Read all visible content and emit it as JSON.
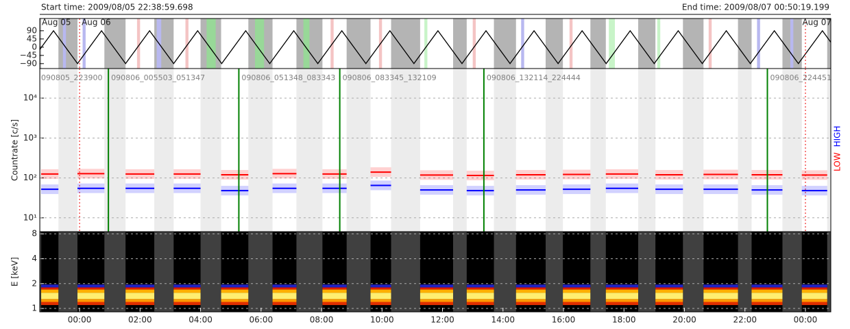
{
  "header": {
    "start": "Start time: 2009/08/05 22:38:59.698",
    "end": "End time: 2009/08/07 00:50:19.199"
  },
  "chart_data": [
    {
      "type": "line",
      "xlim": [
        -1.3167,
        24.839
      ],
      "ylim": [
        -117,
        157
      ],
      "yticks": [
        90,
        45,
        0,
        {
          "value": -45,
          "label": "−45"
        },
        {
          "value": -90,
          "label": "−90"
        }
      ],
      "start_label": "Aug 05",
      "day_markers": [
        {
          "x": 0,
          "label": "Aug 06"
        },
        {
          "x": 24,
          "label": "Aug 07"
        }
      ],
      "stripes": [
        {
          "x0": -0.55,
          "x1": -0.45,
          "color": "#b8b8f0"
        },
        {
          "x0": 0.1,
          "x1": 0.2,
          "color": "#b8b8f0"
        },
        {
          "x0": 1.9,
          "x1": 2.0,
          "color": "#f4c4c4"
        },
        {
          "x0": 2.55,
          "x1": 2.7,
          "color": "#b8b8f0"
        },
        {
          "x0": 3.5,
          "x1": 3.6,
          "color": "#f4c4c4"
        },
        {
          "x0": 4.2,
          "x1": 4.5,
          "color": "#98d898"
        },
        {
          "x0": 5.8,
          "x1": 6.1,
          "color": "#98d898"
        },
        {
          "x0": 7.4,
          "x1": 7.6,
          "color": "#98d898"
        },
        {
          "x0": 8.3,
          "x1": 8.4,
          "color": "#f4c4c4"
        },
        {
          "x0": 9.9,
          "x1": 10.0,
          "color": "#f4c4c4"
        },
        {
          "x0": 11.4,
          "x1": 11.5,
          "color": "#c8f4c8"
        },
        {
          "x0": 13.0,
          "x1": 13.1,
          "color": "#f4c4c4"
        },
        {
          "x0": 14.6,
          "x1": 14.7,
          "color": "#b8b8f0"
        },
        {
          "x0": 16.2,
          "x1": 16.3,
          "color": "#f4c4c4"
        },
        {
          "x0": 17.5,
          "x1": 17.7,
          "color": "#c8f4c8"
        },
        {
          "x0": 19.1,
          "x1": 19.2,
          "color": "#c8f4c8"
        },
        {
          "x0": 20.8,
          "x1": 20.9,
          "color": "#f4c4c4"
        },
        {
          "x0": 22.4,
          "x1": 22.5,
          "color": "#b8b8f0"
        },
        {
          "x0": 23.5,
          "x1": 23.6,
          "color": "#b8b8f0"
        }
      ],
      "x": [
        -1.3167,
        -0.862,
        -0.068,
        0.726,
        1.521,
        2.315,
        3.11,
        3.904,
        4.699,
        5.493,
        6.288,
        7.082,
        7.877,
        8.671,
        9.466,
        10.26,
        11.055,
        11.849,
        12.644,
        13.438,
        14.233,
        15.027,
        15.822,
        16.616,
        17.411,
        18.205,
        19.0,
        19.794,
        20.589,
        21.383,
        22.178,
        22.972,
        23.767,
        24.561,
        24.839
      ],
      "series": [
        {
          "color": "#000000",
          "values": [
            -13,
            90,
            -90,
            90,
            -90,
            90,
            -90,
            90,
            -90,
            90,
            -90,
            90,
            -90,
            90,
            -90,
            90,
            -90,
            90,
            -90,
            90,
            -90,
            90,
            -90,
            90,
            -90,
            90,
            -90,
            90,
            -90,
            90,
            -90,
            90,
            -90,
            90,
            27
          ]
        }
      ]
    },
    {
      "type": "segments",
      "ylabel": "Countrate [c/s]",
      "log": true,
      "xlim": [
        -1.3167,
        24.839
      ],
      "ylim": [
        4.5,
        55000
      ],
      "yticks": [
        {
          "value": 10,
          "label": "10¹"
        },
        {
          "value": 100,
          "label": "10²"
        },
        {
          "value": 1000,
          "label": "10³"
        },
        {
          "value": 10000,
          "label": "10⁴"
        }
      ],
      "grid": true,
      "x_start": [
        -1.27,
        -0.07,
        1.52,
        3.11,
        4.68,
        6.38,
        8.03,
        9.62,
        11.26,
        12.8,
        14.43,
        15.98,
        17.4,
        19.04,
        20.63,
        22.22,
        23.88
      ],
      "x_end": [
        -0.7,
        0.82,
        2.47,
        4.0,
        5.58,
        7.17,
        8.83,
        10.3,
        12.35,
        13.7,
        15.41,
        16.89,
        18.47,
        19.95,
        21.77,
        23.24,
        24.72
      ],
      "series": [
        {
          "name": "LOW",
          "color": "#ff0000",
          "values": [
            125,
            128,
            125,
            125,
            120,
            128,
            125,
            140,
            118,
            115,
            120,
            122,
            125,
            120,
            122,
            120,
            118
          ]
        },
        {
          "name": "HIGH",
          "color": "#0000ff",
          "values": [
            52,
            55,
            55,
            55,
            48,
            55,
            55,
            65,
            50,
            48,
            50,
            52,
            55,
            52,
            52,
            50,
            48
          ]
        }
      ],
      "boundaries": [
        0.953,
        5.266,
        8.603,
        13.368,
        22.742
      ],
      "segment_labels": [
        "090805_223900",
        "090806_005503_051347",
        "090806_051348_083343",
        "090806_083345_132109",
        "090806_132114_224444",
        "090806_224451"
      ]
    },
    {
      "type": "spectrogram",
      "ylabel": "E [keV]",
      "log": true,
      "xlim": [
        -1.3167,
        24.839
      ],
      "ylim": [
        0.91,
        8.5
      ],
      "yticks": [
        1,
        2,
        4,
        8
      ],
      "xticks": [
        {
          "value": 0,
          "label": "00:00"
        },
        {
          "value": 2,
          "label": "02:00"
        },
        {
          "value": 4,
          "label": "04:00"
        },
        {
          "value": 6,
          "label": "06:00"
        },
        {
          "value": 8,
          "label": "08:00"
        },
        {
          "value": 10,
          "label": "10:00"
        },
        {
          "value": 12,
          "label": "12:00"
        },
        {
          "value": 14,
          "label": "14:00"
        },
        {
          "value": 16,
          "label": "16:00"
        },
        {
          "value": 18,
          "label": "18:00"
        },
        {
          "value": 20,
          "label": "20:00"
        },
        {
          "value": 22,
          "label": "22:00"
        },
        {
          "value": 24,
          "label": "00:00"
        }
      ],
      "bands": [
        {
          "lo": 1.1,
          "hi": 1.2,
          "color": "#e03000"
        },
        {
          "lo": 1.2,
          "hi": 1.3,
          "color": "#ff9a00"
        },
        {
          "lo": 1.3,
          "hi": 1.55,
          "color": "#ffee70"
        },
        {
          "lo": 1.55,
          "hi": 1.7,
          "color": "#ffb000"
        },
        {
          "lo": 1.7,
          "hi": 1.8,
          "color": "#e02000"
        },
        {
          "lo": 1.8,
          "hi": 1.95,
          "color": "#2020c0"
        }
      ]
    }
  ]
}
